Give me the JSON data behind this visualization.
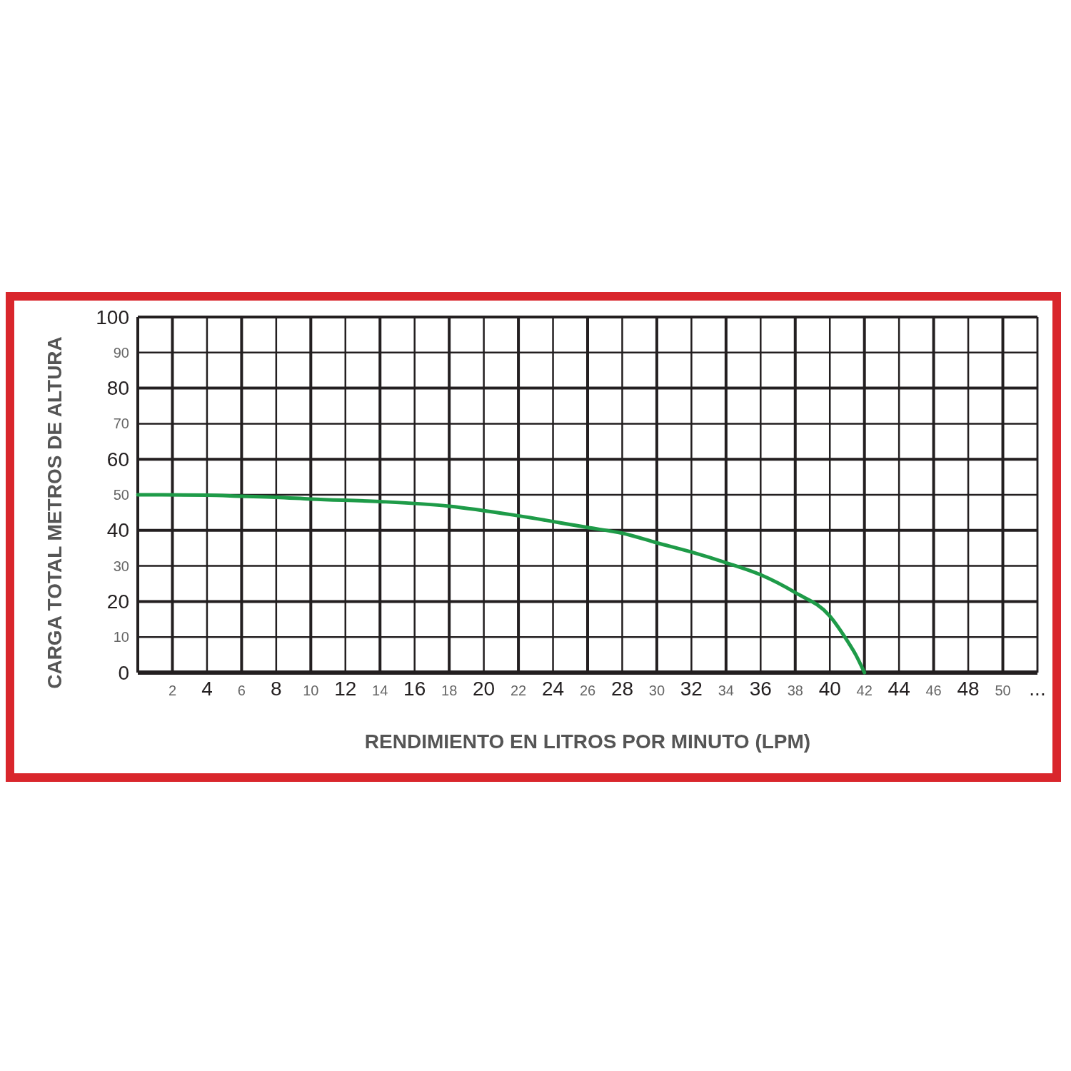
{
  "chart_data": {
    "type": "line",
    "xlabel": "RENDIMIENTO EN LITROS POR MINUTO (LPM)",
    "ylabel": "CARGA TOTAL METROS DE ALTURA",
    "xlim": [
      0,
      52
    ],
    "ylim": [
      0,
      100
    ],
    "xticks": [
      2,
      4,
      6,
      8,
      10,
      12,
      14,
      16,
      18,
      20,
      22,
      24,
      26,
      28,
      30,
      32,
      34,
      36,
      38,
      40,
      42,
      44,
      46,
      48,
      50,
      {
        "value": 52,
        "label": "..."
      }
    ],
    "yticks": [
      0,
      10,
      20,
      30,
      40,
      50,
      60,
      70,
      80,
      90,
      100
    ],
    "grid": true,
    "marker": "none",
    "line_style": "solid",
    "series": [
      {
        "color": "#1e9b48",
        "x": [
          0,
          4,
          6,
          8,
          10,
          14,
          18,
          22,
          26,
          28,
          30,
          32,
          34,
          36,
          38,
          40,
          41,
          41.5,
          42
        ],
        "values": [
          50,
          49.9,
          49.6,
          49.3,
          48.8,
          48.1,
          46.8,
          44.1,
          40.8,
          39.2,
          36.5,
          33.9,
          30.9,
          27.5,
          22.5,
          15.9,
          9,
          5,
          0
        ]
      }
    ]
  }
}
